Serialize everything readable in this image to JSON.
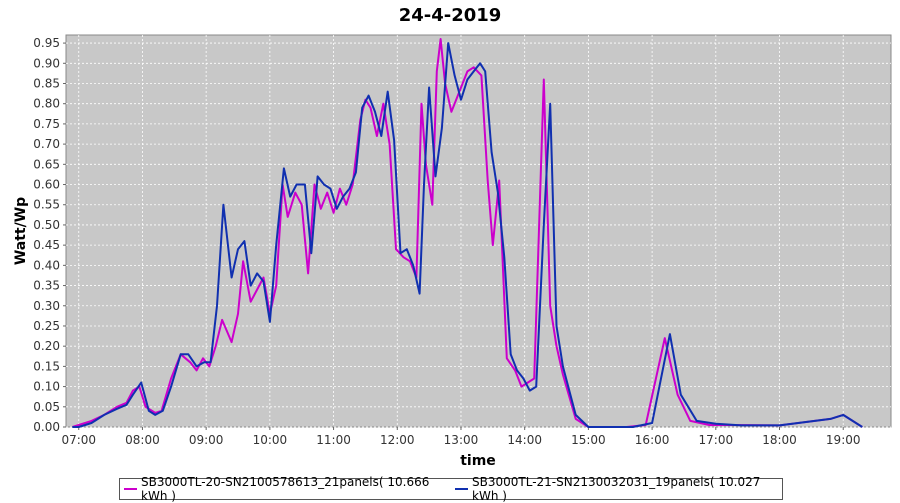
{
  "chart_data": {
    "type": "line",
    "title": "24-4-2019",
    "xlabel": "time",
    "ylabel": "Watt/Wp",
    "xlim": [
      6.8,
      19.75
    ],
    "ylim": [
      0,
      0.97
    ],
    "xticks": [
      "07:00",
      "08:00",
      "09:00",
      "10:00",
      "11:00",
      "12:00",
      "13:00",
      "14:00",
      "15:00",
      "16:00",
      "17:00",
      "18:00",
      "19:00"
    ],
    "yticks": [
      "0.00",
      "0.05",
      "0.10",
      "0.15",
      "0.20",
      "0.25",
      "0.30",
      "0.35",
      "0.40",
      "0.45",
      "0.50",
      "0.55",
      "0.60",
      "0.65",
      "0.70",
      "0.75",
      "0.80",
      "0.85",
      "0.90",
      "0.95"
    ],
    "grid": true,
    "legend": "bottom",
    "background": "#c8c8c8",
    "series": [
      {
        "name": "SB3000TL-20-SN2100578613_21panels( 10.666 kWh )",
        "color": "#cc00cc",
        "points": [
          [
            6.9,
            0.0
          ],
          [
            7.0,
            0.005
          ],
          [
            7.2,
            0.015
          ],
          [
            7.4,
            0.03
          ],
          [
            7.6,
            0.05
          ],
          [
            7.75,
            0.06
          ],
          [
            7.85,
            0.09
          ],
          [
            7.95,
            0.1
          ],
          [
            8.05,
            0.05
          ],
          [
            8.2,
            0.035
          ],
          [
            8.3,
            0.04
          ],
          [
            8.45,
            0.12
          ],
          [
            8.6,
            0.18
          ],
          [
            8.75,
            0.16
          ],
          [
            8.85,
            0.14
          ],
          [
            8.95,
            0.17
          ],
          [
            9.05,
            0.15
          ],
          [
            9.15,
            0.2
          ],
          [
            9.25,
            0.265
          ],
          [
            9.4,
            0.21
          ],
          [
            9.5,
            0.28
          ],
          [
            9.58,
            0.41
          ],
          [
            9.7,
            0.31
          ],
          [
            9.8,
            0.34
          ],
          [
            9.9,
            0.37
          ],
          [
            10.0,
            0.28
          ],
          [
            10.1,
            0.35
          ],
          [
            10.2,
            0.6
          ],
          [
            10.28,
            0.52
          ],
          [
            10.4,
            0.58
          ],
          [
            10.5,
            0.55
          ],
          [
            10.6,
            0.38
          ],
          [
            10.7,
            0.6
          ],
          [
            10.8,
            0.54
          ],
          [
            10.9,
            0.58
          ],
          [
            11.0,
            0.53
          ],
          [
            11.1,
            0.59
          ],
          [
            11.2,
            0.55
          ],
          [
            11.3,
            0.6
          ],
          [
            11.42,
            0.76
          ],
          [
            11.5,
            0.81
          ],
          [
            11.58,
            0.79
          ],
          [
            11.68,
            0.72
          ],
          [
            11.78,
            0.8
          ],
          [
            11.88,
            0.7
          ],
          [
            11.98,
            0.44
          ],
          [
            12.1,
            0.42
          ],
          [
            12.2,
            0.41
          ],
          [
            12.3,
            0.37
          ],
          [
            12.38,
            0.8
          ],
          [
            12.45,
            0.65
          ],
          [
            12.55,
            0.55
          ],
          [
            12.62,
            0.88
          ],
          [
            12.68,
            0.96
          ],
          [
            12.75,
            0.85
          ],
          [
            12.85,
            0.78
          ],
          [
            12.9,
            0.8
          ],
          [
            13.0,
            0.84
          ],
          [
            13.1,
            0.88
          ],
          [
            13.2,
            0.89
          ],
          [
            13.32,
            0.87
          ],
          [
            13.42,
            0.61
          ],
          [
            13.5,
            0.45
          ],
          [
            13.6,
            0.61
          ],
          [
            13.72,
            0.17
          ],
          [
            13.85,
            0.14
          ],
          [
            13.95,
            0.1
          ],
          [
            14.05,
            0.11
          ],
          [
            14.15,
            0.12
          ],
          [
            14.3,
            0.86
          ],
          [
            14.4,
            0.3
          ],
          [
            14.5,
            0.2
          ],
          [
            14.6,
            0.13
          ],
          [
            14.8,
            0.02
          ],
          [
            15.0,
            0.0
          ],
          [
            15.6,
            0.0
          ],
          [
            15.9,
            0.005
          ],
          [
            16.2,
            0.22
          ],
          [
            16.4,
            0.08
          ],
          [
            16.6,
            0.015
          ],
          [
            16.9,
            0.005
          ],
          [
            17.2,
            0.005
          ],
          [
            18.0,
            0.004
          ],
          [
            18.8,
            0.02
          ],
          [
            19.0,
            0.03
          ],
          [
            19.3,
            0.0
          ]
        ]
      },
      {
        "name": "SB3000TL-21-SN2130032031_19panels( 10.027 kWh )",
        "color": "#1030b0",
        "points": [
          [
            6.9,
            0.0
          ],
          [
            7.0,
            0.0
          ],
          [
            7.2,
            0.01
          ],
          [
            7.4,
            0.03
          ],
          [
            7.6,
            0.045
          ],
          [
            7.75,
            0.055
          ],
          [
            7.85,
            0.08
          ],
          [
            7.98,
            0.11
          ],
          [
            8.1,
            0.04
          ],
          [
            8.2,
            0.03
          ],
          [
            8.32,
            0.04
          ],
          [
            8.45,
            0.1
          ],
          [
            8.6,
            0.18
          ],
          [
            8.72,
            0.18
          ],
          [
            8.85,
            0.15
          ],
          [
            8.97,
            0.16
          ],
          [
            9.07,
            0.16
          ],
          [
            9.17,
            0.3
          ],
          [
            9.27,
            0.55
          ],
          [
            9.4,
            0.37
          ],
          [
            9.5,
            0.44
          ],
          [
            9.6,
            0.46
          ],
          [
            9.7,
            0.35
          ],
          [
            9.8,
            0.38
          ],
          [
            9.9,
            0.36
          ],
          [
            10.0,
            0.26
          ],
          [
            10.1,
            0.45
          ],
          [
            10.22,
            0.64
          ],
          [
            10.32,
            0.57
          ],
          [
            10.42,
            0.6
          ],
          [
            10.55,
            0.6
          ],
          [
            10.65,
            0.43
          ],
          [
            10.75,
            0.62
          ],
          [
            10.85,
            0.6
          ],
          [
            10.95,
            0.59
          ],
          [
            11.05,
            0.54
          ],
          [
            11.15,
            0.57
          ],
          [
            11.25,
            0.59
          ],
          [
            11.35,
            0.63
          ],
          [
            11.45,
            0.79
          ],
          [
            11.55,
            0.82
          ],
          [
            11.65,
            0.78
          ],
          [
            11.75,
            0.72
          ],
          [
            11.85,
            0.83
          ],
          [
            11.95,
            0.71
          ],
          [
            12.05,
            0.43
          ],
          [
            12.15,
            0.44
          ],
          [
            12.25,
            0.4
          ],
          [
            12.35,
            0.33
          ],
          [
            12.42,
            0.6
          ],
          [
            12.5,
            0.84
          ],
          [
            12.6,
            0.62
          ],
          [
            12.7,
            0.74
          ],
          [
            12.8,
            0.95
          ],
          [
            12.9,
            0.87
          ],
          [
            13.0,
            0.81
          ],
          [
            13.1,
            0.86
          ],
          [
            13.2,
            0.88
          ],
          [
            13.3,
            0.9
          ],
          [
            13.38,
            0.88
          ],
          [
            13.48,
            0.68
          ],
          [
            13.58,
            0.58
          ],
          [
            13.68,
            0.42
          ],
          [
            13.78,
            0.18
          ],
          [
            13.88,
            0.14
          ],
          [
            13.98,
            0.12
          ],
          [
            14.08,
            0.09
          ],
          [
            14.18,
            0.1
          ],
          [
            14.3,
            0.5
          ],
          [
            14.4,
            0.8
          ],
          [
            14.5,
            0.25
          ],
          [
            14.6,
            0.15
          ],
          [
            14.8,
            0.03
          ],
          [
            15.0,
            0.0
          ],
          [
            15.7,
            0.0
          ],
          [
            16.0,
            0.01
          ],
          [
            16.28,
            0.23
          ],
          [
            16.45,
            0.08
          ],
          [
            16.7,
            0.015
          ],
          [
            17.0,
            0.008
          ],
          [
            17.4,
            0.004
          ],
          [
            18.0,
            0.004
          ],
          [
            18.8,
            0.02
          ],
          [
            19.0,
            0.03
          ],
          [
            19.3,
            0.0
          ]
        ]
      }
    ]
  }
}
